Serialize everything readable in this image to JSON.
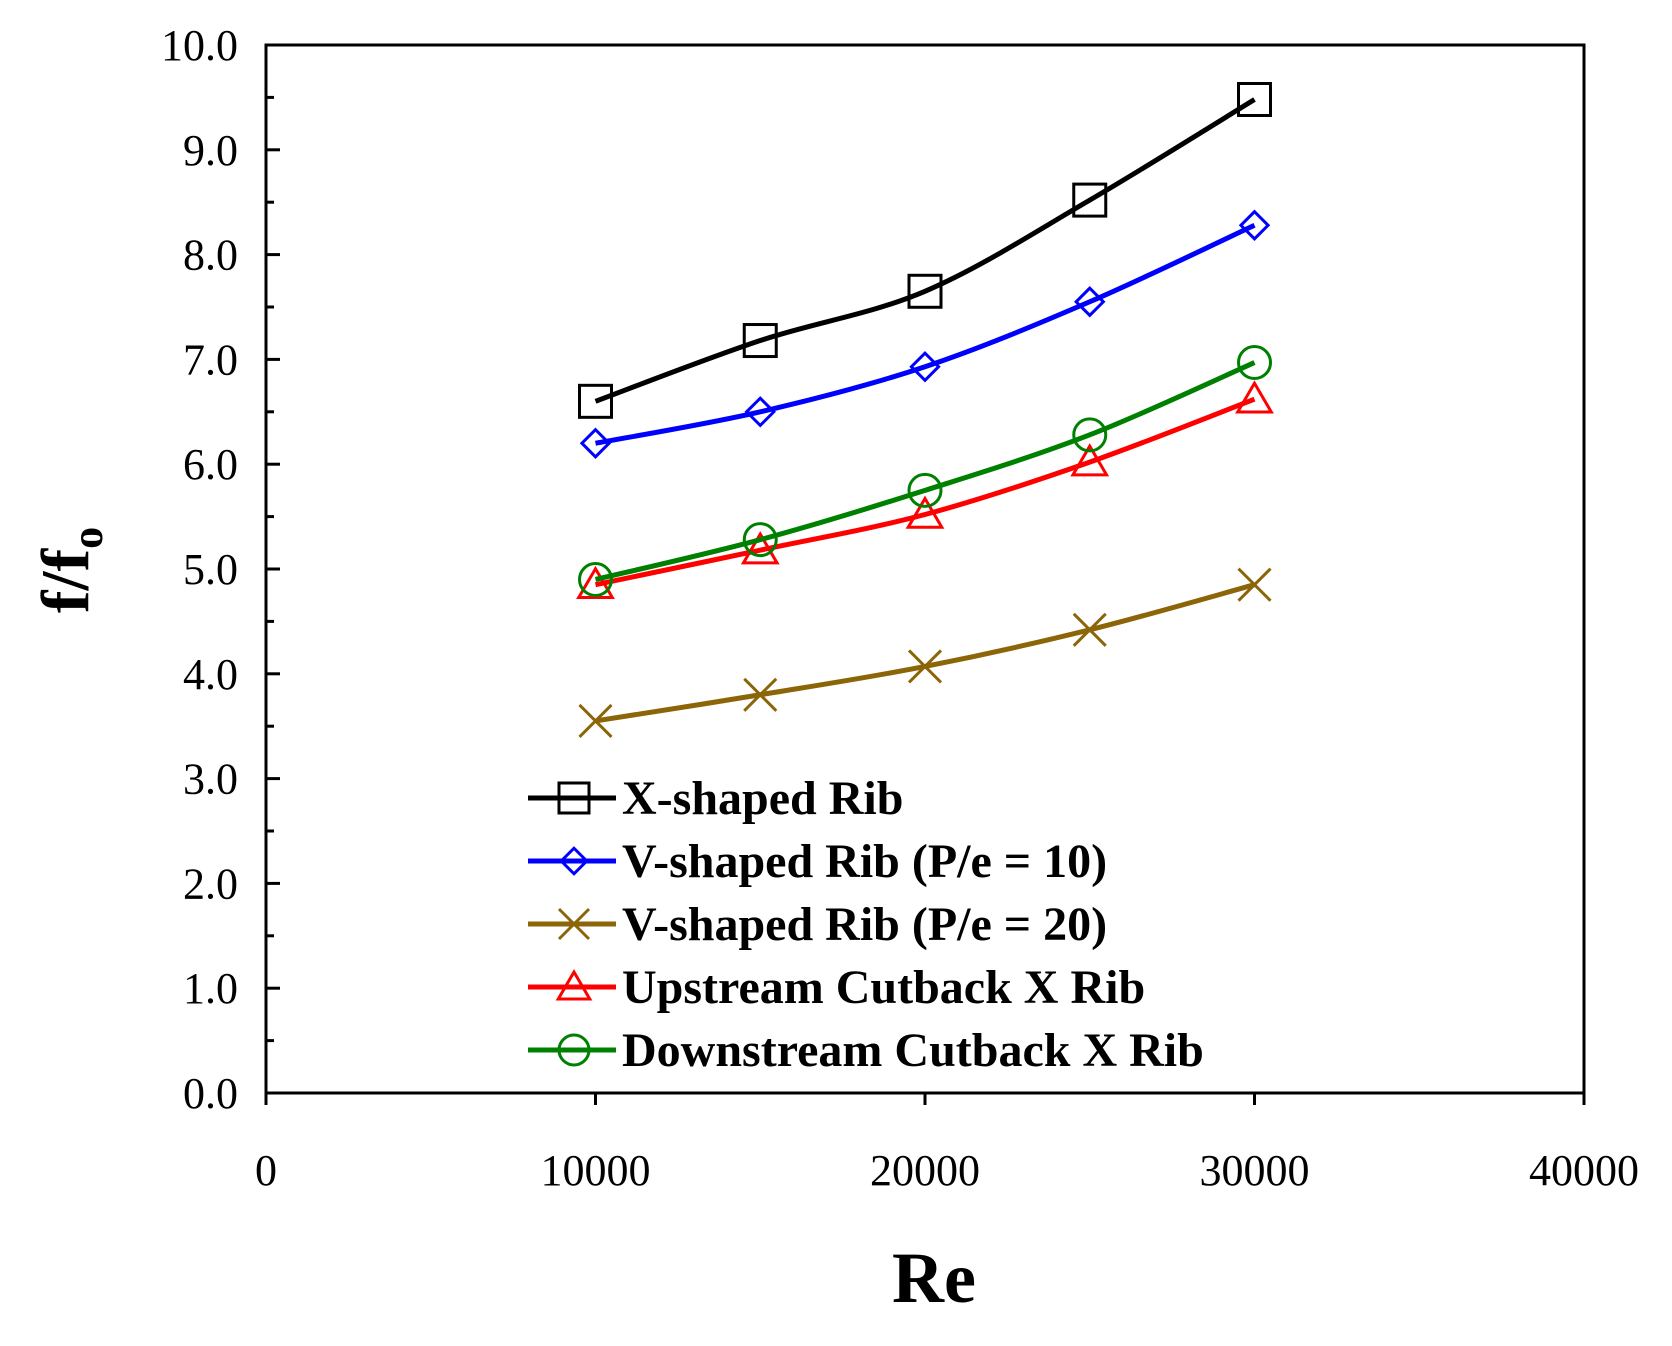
{
  "chart_data": {
    "type": "line",
    "xlabel": "Re",
    "ylabel_main": "f/f",
    "ylabel_sub": "o",
    "xlim": [
      0,
      40000
    ],
    "ylim": [
      0,
      10
    ],
    "x_ticks": [
      "0",
      "10000",
      "20000",
      "30000",
      "40000"
    ],
    "y_ticks": [
      "0.0",
      "1.0",
      "2.0",
      "3.0",
      "4.0",
      "5.0",
      "6.0",
      "7.0",
      "8.0",
      "9.0",
      "10.0"
    ],
    "grid": false,
    "legend_position": "bottom-center",
    "x": [
      10000,
      15000,
      20000,
      25000,
      30000
    ],
    "series": [
      {
        "name": "X-shaped Rib",
        "color": "#000000",
        "marker": "square",
        "values": [
          6.6,
          7.18,
          7.65,
          8.52,
          9.48
        ]
      },
      {
        "name": "V-shaped Rib (P/e = 10)",
        "color": "#0000ff",
        "marker": "diamond",
        "values": [
          6.2,
          6.5,
          6.93,
          7.55,
          8.28
        ]
      },
      {
        "name": "V-shaped Rib (P/e = 20)",
        "color": "#8b6508",
        "marker": "x",
        "values": [
          3.55,
          3.8,
          4.07,
          4.42,
          4.85
        ]
      },
      {
        "name": "Upstream Cutback X Rib",
        "color": "#ff0000",
        "marker": "triangle",
        "values": [
          4.85,
          5.18,
          5.52,
          6.02,
          6.62
        ]
      },
      {
        "name": "Downstream Cutback X Rib",
        "color": "#008000",
        "marker": "circle",
        "values": [
          4.9,
          5.28,
          5.75,
          6.28,
          6.97
        ]
      }
    ]
  }
}
